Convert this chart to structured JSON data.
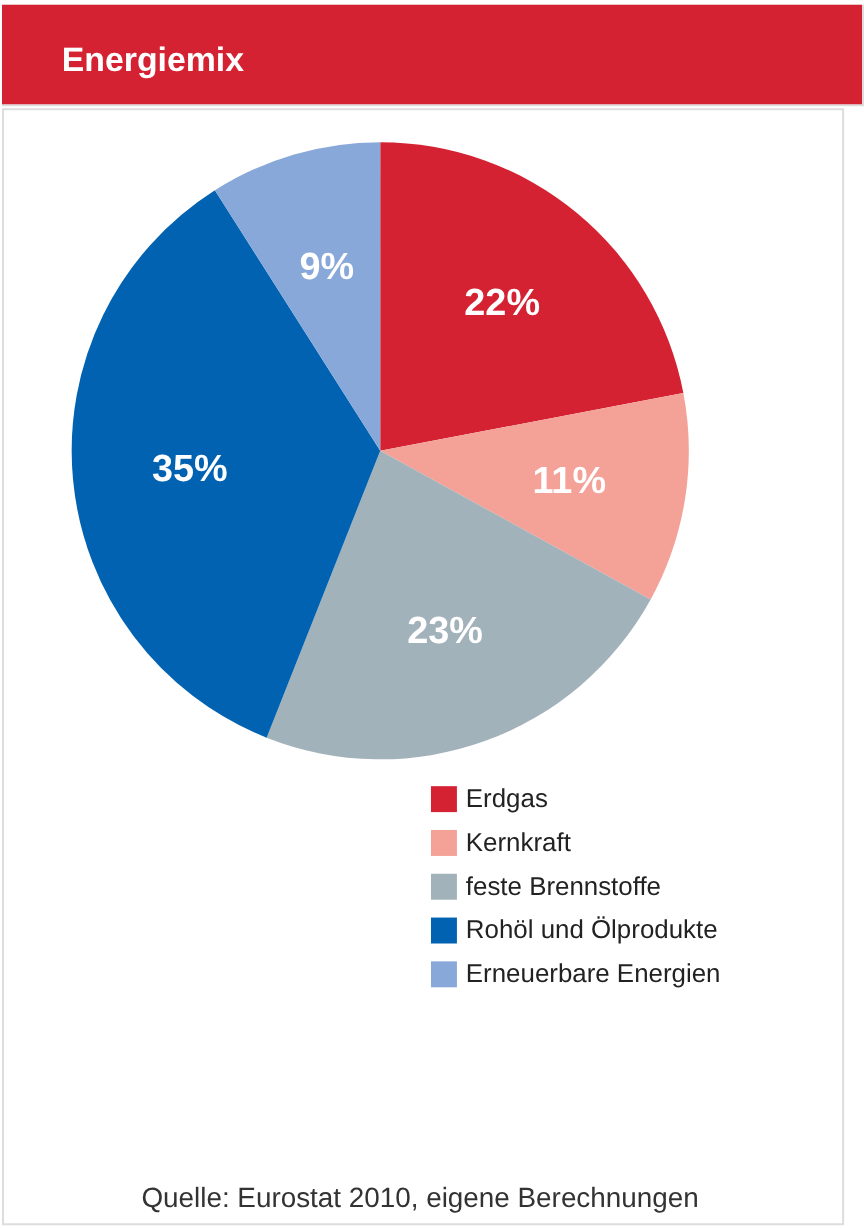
{
  "chart_data": {
    "type": "pie",
    "title": "Energiemix",
    "categories": [
      "Erdgas",
      "Kernkraft",
      "feste Brennstoffe",
      "Rohöl und Ölprodukte",
      "Erneuerbare Energien"
    ],
    "values": [
      22,
      11,
      23,
      35,
      9
    ],
    "colors": [
      "#d42232",
      "#f4a198",
      "#a2b2ba",
      "#0062b0",
      "#87a8d8"
    ],
    "value_labels": [
      "22%",
      "11%",
      "23%",
      "35%",
      "9%"
    ],
    "legend": "bottom right",
    "annotations": [
      "Quelle: Eurostat 2010, eigene Berechnungen"
    ]
  }
}
